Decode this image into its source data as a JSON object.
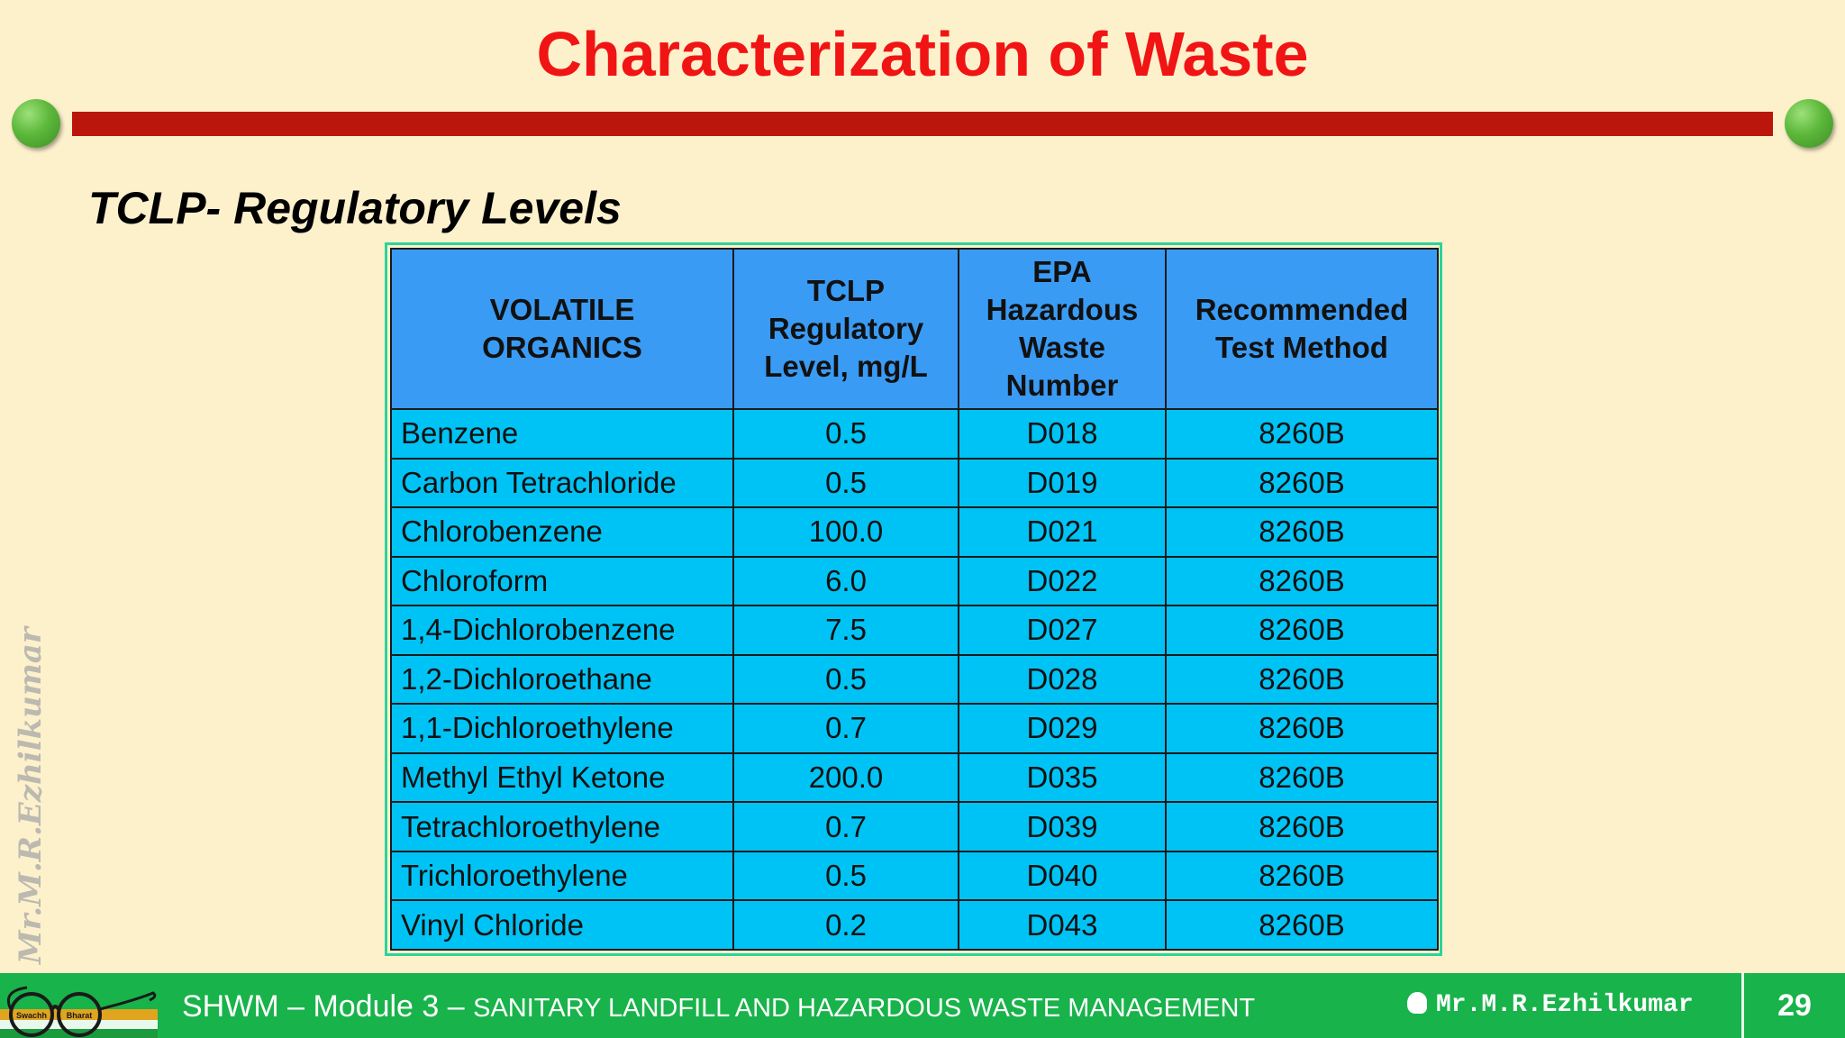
{
  "slide": {
    "title": "Characterization of Waste",
    "subtitle": "TCLP- Regulatory Levels",
    "watermark": "Mr.M.R.Ezhilkumar"
  },
  "table": {
    "headers": [
      "VOLATILE ORGANICS",
      "TCLP Regulatory Level, mg/L",
      "EPA Hazardous Waste Number",
      "Recommended Test Method"
    ],
    "rows": [
      [
        "Benzene",
        "0.5",
        "D018",
        "8260B"
      ],
      [
        "Carbon Tetrachloride",
        "0.5",
        "D019",
        "8260B"
      ],
      [
        "Chlorobenzene",
        "100.0",
        "D021",
        "8260B"
      ],
      [
        "Chloroform",
        "6.0",
        "D022",
        "8260B"
      ],
      [
        "1,4-Dichlorobenzene",
        "7.5",
        "D027",
        "8260B"
      ],
      [
        "1,2-Dichloroethane",
        "0.5",
        "D028",
        "8260B"
      ],
      [
        "1,1-Dichloroethylene",
        "0.7",
        "D029",
        "8260B"
      ],
      [
        "Methyl Ethyl Ketone",
        "200.0",
        "D035",
        "8260B"
      ],
      [
        "Tetrachloroethylene",
        "0.7",
        "D039",
        "8260B"
      ],
      [
        "Trichloroethylene",
        "0.5",
        "D040",
        "8260B"
      ],
      [
        "Vinyl Chloride",
        "0.2",
        "D043",
        "8260B"
      ]
    ]
  },
  "footer": {
    "course": "SHWM – Module 3 – ",
    "module_title": "SANITARY LANDFILL AND HAZARDOUS WASTE MANAGEMENT",
    "author": "Mr.M.R.Ezhilkumar",
    "page_number": "29",
    "logo_left_label": "Swachh",
    "logo_right_label": "Bharat"
  },
  "colors": {
    "background": "#fdf1cc",
    "title": "#f01414",
    "title_bar": "#bb160c",
    "header_cell": "#3a9bf4",
    "data_cell": "#00c3f5",
    "footer": "#18b34a"
  }
}
